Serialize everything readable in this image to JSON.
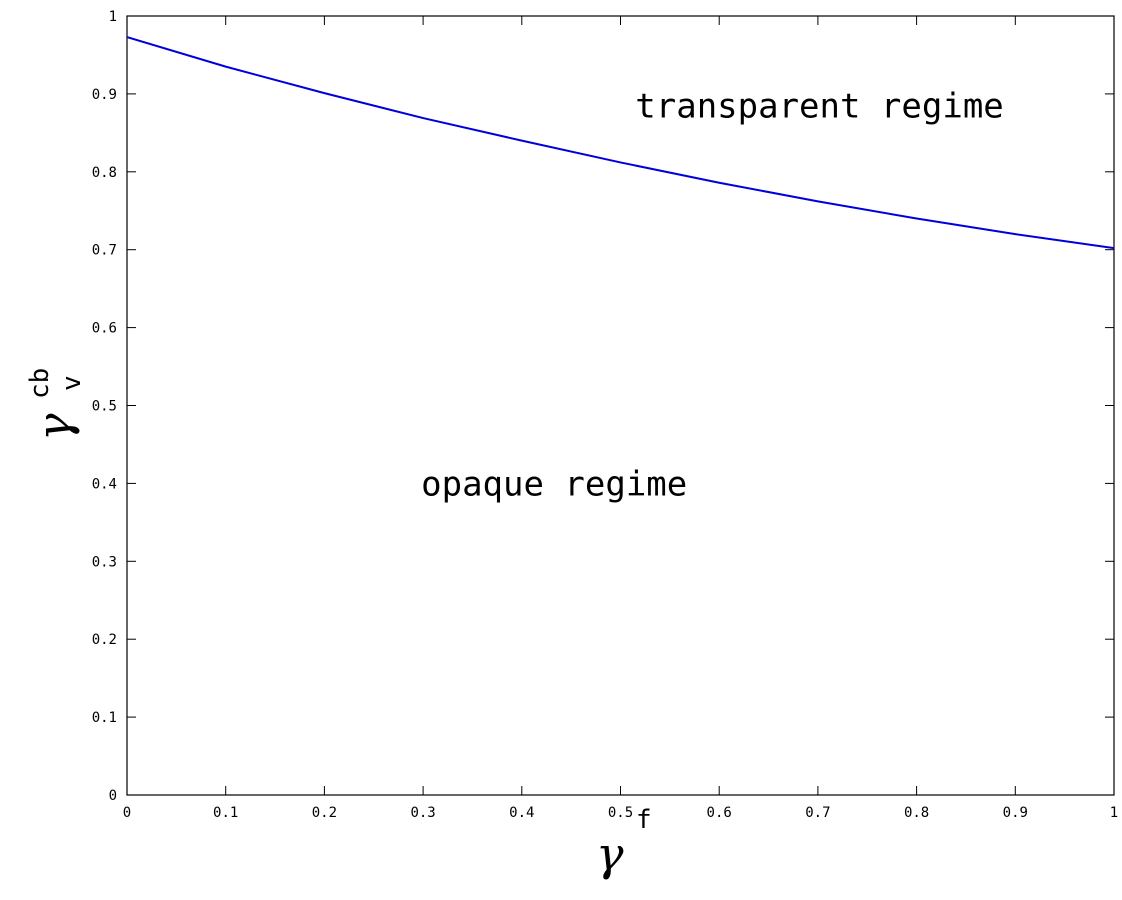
{
  "chart_data": {
    "type": "line",
    "title": "",
    "xlabel": {
      "symbol": "γ",
      "superscript": "f"
    },
    "ylabel": {
      "symbol": "γ",
      "superscript": "cb",
      "subscript": "v"
    },
    "xlim": [
      0,
      1
    ],
    "ylim": [
      0,
      1
    ],
    "xticks": [
      "0",
      "0.1",
      "0.2",
      "0.3",
      "0.4",
      "0.5",
      "0.6",
      "0.7",
      "0.8",
      "0.9",
      "1"
    ],
    "yticks": [
      "0",
      "0.1",
      "0.2",
      "0.3",
      "0.4",
      "0.5",
      "0.6",
      "0.7",
      "0.8",
      "0.9",
      "1"
    ],
    "grid": false,
    "legend": "none",
    "series": [
      {
        "color": "#0000dd",
        "x": [
          0,
          0.1,
          0.2,
          0.3,
          0.4,
          0.5,
          0.6,
          0.7,
          0.8,
          0.9,
          1.0
        ],
        "y": [
          0.973,
          0.935,
          0.901,
          0.869,
          0.84,
          0.812,
          0.786,
          0.762,
          0.74,
          0.72,
          0.702
        ]
      }
    ],
    "annotations": [
      {
        "text": "transparent regime",
        "x": 0.515,
        "y": 0.885
      },
      {
        "text": "opaque regime",
        "x": 0.298,
        "y": 0.4
      }
    ]
  }
}
